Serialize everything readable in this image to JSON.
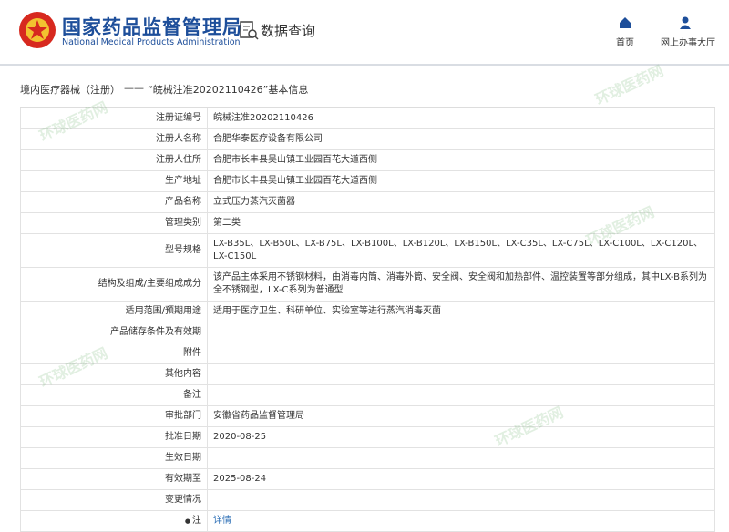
{
  "header": {
    "title": "国家药品监督管理局",
    "subtitle": "National Medical Products Administration",
    "section": "数据查询",
    "nav": [
      "首页",
      "网上办事大厅"
    ]
  },
  "breadcrumb": {
    "category": "境内医疗器械（注册）",
    "separator": "——",
    "record": "“皖械注准20202110426”基本信息"
  },
  "watermark": "环球医药网",
  "table": {
    "rows": [
      {
        "label": "注册证编号",
        "value": "皖械注准20202110426"
      },
      {
        "label": "注册人名称",
        "value": "合肥华泰医疗设备有限公司"
      },
      {
        "label": "注册人住所",
        "value": "合肥市长丰县吴山镇工业园百花大道西侧"
      },
      {
        "label": "生产地址",
        "value": "合肥市长丰县吴山镇工业园百花大道西侧"
      },
      {
        "label": "产品名称",
        "value": "立式压力蒸汽灭菌器"
      },
      {
        "label": "管理类别",
        "value": "第二类"
      },
      {
        "label": "型号规格",
        "value": "LX-B35L、LX-B50L、LX-B75L、LX-B100L、LX-B120L、LX-B150L、LX-C35L、LX-C75L、LX-C100L、LX-C120L、LX-C150L"
      },
      {
        "label": "结构及组成/主要组成成分",
        "value": "该产品主体采用不锈钢材料，由消毒内筒、消毒外筒、安全阀、安全阀和加热部件、温控装置等部分组成，其中LX-B系列为全不锈钢型，LX-C系列为普通型"
      },
      {
        "label": "适用范围/预期用途",
        "value": "适用于医疗卫生、科研单位、实验室等进行蒸汽消毒灭菌"
      },
      {
        "label": "产品储存条件及有效期"
      },
      {
        "label": "附件"
      },
      {
        "label": "其他内容"
      },
      {
        "label": "备注"
      },
      {
        "label": "审批部门",
        "value": "安徽省药品监督管理局"
      },
      {
        "label": "批准日期",
        "value": "2020-08-25"
      },
      {
        "label": "生效日期"
      },
      {
        "label": "有效期至",
        "value": "2025-08-24"
      },
      {
        "label": "变更情况"
      },
      {
        "label": "注",
        "value": "详情"
      }
    ]
  }
}
